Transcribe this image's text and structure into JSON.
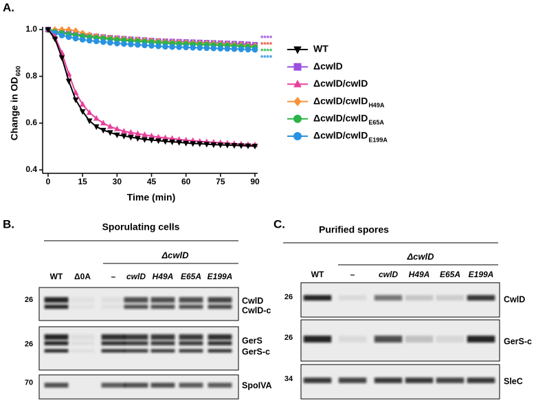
{
  "chart_data": {
    "type": "line",
    "panel_label": "A.",
    "xlabel": "Time (min)",
    "ylabel": "Change in OD",
    "ylabel_sub": "600",
    "x": [
      0,
      3,
      6,
      9,
      12,
      15,
      18,
      21,
      24,
      27,
      30,
      33,
      36,
      39,
      42,
      45,
      48,
      51,
      54,
      57,
      60,
      63,
      66,
      69,
      72,
      75,
      78,
      81,
      84,
      87,
      90
    ],
    "xlim": [
      0,
      90
    ],
    "xticks": [
      0,
      15,
      30,
      45,
      60,
      75,
      90
    ],
    "ylim": [
      0.4,
      1.0
    ],
    "yticks": [
      0.4,
      0.6,
      0.8,
      {
        "value": 1.0,
        "label": "1.0"
      }
    ],
    "series": [
      {
        "name": "WT",
        "color": "#000000",
        "marker": "triangle-down",
        "values": [
          1.0,
          0.96,
          0.88,
          0.78,
          0.7,
          0.65,
          0.61,
          0.585,
          0.57,
          0.56,
          0.55,
          0.545,
          0.54,
          0.535,
          0.53,
          0.528,
          0.525,
          0.522,
          0.52,
          0.518,
          0.515,
          0.513,
          0.512,
          0.51,
          0.508,
          0.507,
          0.506,
          0.505,
          0.504,
          0.503,
          0.502
        ]
      },
      {
        "name": "ΔcwlD",
        "color": "#9b4fe0",
        "marker": "square",
        "values": [
          1.0,
          0.99,
          0.99,
          0.985,
          0.98,
          0.977,
          0.974,
          0.971,
          0.968,
          0.965,
          0.963,
          0.961,
          0.959,
          0.957,
          0.955,
          0.953,
          0.951,
          0.95,
          0.949,
          0.948,
          0.947,
          0.946,
          0.945,
          0.944,
          0.943,
          0.942,
          0.941,
          0.94,
          0.939,
          0.937,
          0.935
        ]
      },
      {
        "name": "ΔcwlD/cwlD",
        "color": "#e8409a",
        "marker": "triangle",
        "values": [
          1.0,
          0.97,
          0.9,
          0.81,
          0.73,
          0.68,
          0.645,
          0.62,
          0.6,
          0.585,
          0.575,
          0.565,
          0.56,
          0.555,
          0.55,
          0.545,
          0.54,
          0.537,
          0.534,
          0.53,
          0.527,
          0.525,
          0.522,
          0.52,
          0.518,
          0.516,
          0.514,
          0.512,
          0.51,
          0.508,
          0.507
        ]
      },
      {
        "name": "ΔcwlD/cwlD",
        "name_sub": "H49A",
        "color": "#f7923a",
        "marker": "diamond",
        "values": [
          1.0,
          1.0,
          1.0,
          1.0,
          0.995,
          0.985,
          0.978,
          0.972,
          0.968,
          0.965,
          0.962,
          0.96,
          0.958,
          0.956,
          0.954,
          0.952,
          0.95,
          0.948,
          0.946,
          0.945,
          0.944,
          0.943,
          0.942,
          0.941,
          0.94,
          0.939,
          0.938,
          0.936,
          0.934,
          0.932,
          0.93
        ]
      },
      {
        "name": "ΔcwlD/cwlD",
        "name_sub": "E65A",
        "color": "#2db34a",
        "marker": "circle",
        "values": [
          1.0,
          0.99,
          0.985,
          0.98,
          0.976,
          0.972,
          0.968,
          0.965,
          0.962,
          0.959,
          0.956,
          0.954,
          0.952,
          0.95,
          0.948,
          0.946,
          0.944,
          0.942,
          0.94,
          0.939,
          0.938,
          0.937,
          0.936,
          0.935,
          0.934,
          0.933,
          0.932,
          0.93,
          0.928,
          0.926,
          0.924
        ]
      },
      {
        "name": "ΔcwlD/cwlD",
        "name_sub": "E199A",
        "color": "#2a93e0",
        "marker": "circle",
        "values": [
          1.0,
          0.985,
          0.975,
          0.968,
          0.962,
          0.957,
          0.953,
          0.95,
          0.947,
          0.944,
          0.941,
          0.939,
          0.937,
          0.935,
          0.933,
          0.931,
          0.929,
          0.927,
          0.926,
          0.925,
          0.924,
          0.923,
          0.922,
          0.921,
          0.92,
          0.919,
          0.918,
          0.917,
          0.916,
          0.915,
          0.914
        ]
      }
    ],
    "annotations": [
      {
        "text": "****",
        "color": "#9b4fe0"
      },
      {
        "text": "****",
        "color": "#e8503a"
      },
      {
        "text": "****",
        "color": "#2db34a"
      },
      {
        "text": "****",
        "color": "#2a93e0"
      }
    ]
  },
  "blots": [
    {
      "panel_label": "B.",
      "title": "Sporulating cells",
      "group": "ΔcwlD",
      "lanes": [
        "WT",
        "Δ0A",
        "–",
        "cwlD",
        "H49A",
        "E65A",
        "E199A"
      ],
      "rows": [
        {
          "mw": "26",
          "labels": [
            "CwlD",
            "CwlD-c"
          ]
        },
        {
          "mw": "26",
          "labels": [
            "GerS",
            "GerS-c"
          ]
        },
        {
          "mw": "70",
          "labels": [
            "SpoIVA"
          ]
        }
      ]
    },
    {
      "panel_label": "C.",
      "title": "Purified spores",
      "group": "ΔcwlD",
      "lanes": [
        "WT",
        "–",
        "cwlD",
        "H49A",
        "E65A",
        "E199A"
      ],
      "rows": [
        {
          "mw": "26",
          "labels": [
            "CwlD"
          ]
        },
        {
          "mw": "26",
          "labels": [
            "GerS-c"
          ]
        },
        {
          "mw": "34",
          "labels": [
            "SleC"
          ]
        }
      ]
    }
  ]
}
